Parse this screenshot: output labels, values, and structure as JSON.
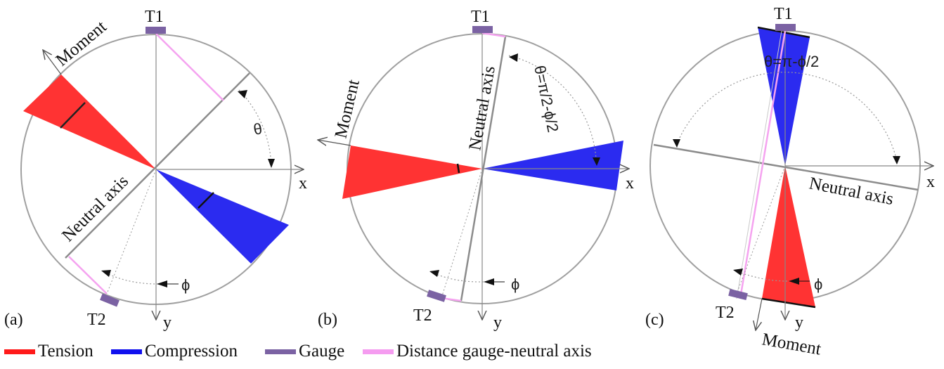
{
  "panels": [
    {
      "label": "(a)",
      "gauge_top": "T1",
      "gauge_bottom": "T2",
      "axis_x": "x",
      "axis_y": "y",
      "moment": "Moment",
      "neutral_axis": "Neutral axis",
      "theta": "θ",
      "phi": "ϕ"
    },
    {
      "label": "(b)",
      "gauge_top": "T1",
      "gauge_bottom": "T2",
      "axis_x": "x",
      "axis_y": "y",
      "moment": "Moment",
      "neutral_axis": "Neutral axis",
      "theta": "θ=π/2-ϕ/2",
      "phi": "ϕ"
    },
    {
      "label": "(c)",
      "gauge_top": "T1",
      "gauge_bottom": "T2",
      "axis_x": "x",
      "axis_y": "y",
      "moment": "Moment",
      "neutral_axis": "Neutral axis",
      "theta": "θ=π-ϕ/2",
      "phi": "ϕ"
    }
  ],
  "legend": [
    {
      "label": "Tension",
      "color": "#ff1a1a"
    },
    {
      "label": "Compression",
      "color": "#1010ee"
    },
    {
      "label": "Gauge",
      "color": "#7b62a3"
    },
    {
      "label": "Distance gauge-neutral axis",
      "color": "#f59cf0"
    }
  ],
  "colors": {
    "tension": "#ff3333",
    "compression": "#2b2bf0",
    "gauge": "#7b62a3",
    "distance": "#f5a3f0",
    "circle": "#9a9a9a",
    "neutral_axis": "#8c8c8c"
  }
}
